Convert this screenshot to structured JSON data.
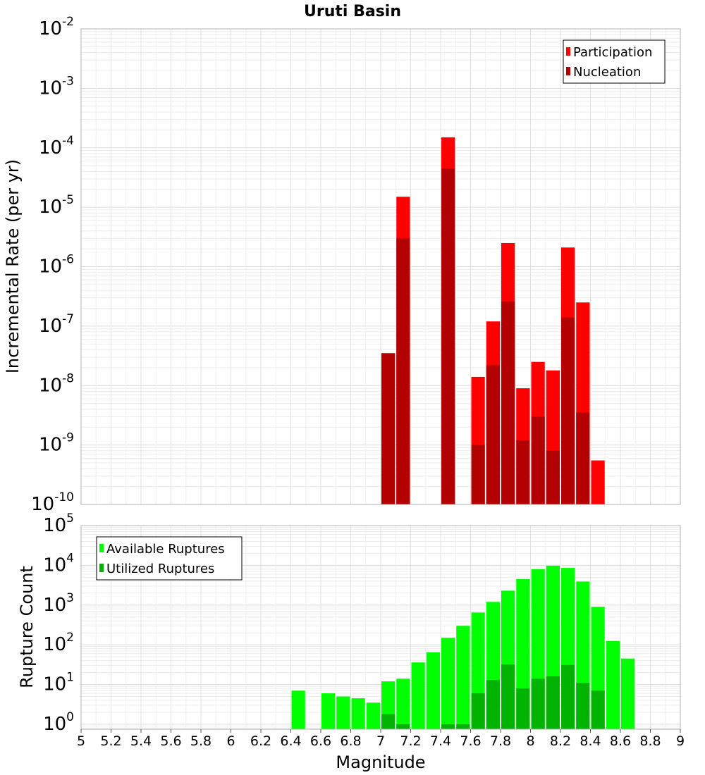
{
  "title": "Uruti Basin",
  "chart_data": [
    {
      "type": "bar",
      "ylabel": "Incremental Rate (per yr)",
      "yscale": "log",
      "ylim": [
        1e-10,
        0.01
      ],
      "y_tick_exponents": [
        -10,
        -9,
        -8,
        -7,
        -6,
        -5,
        -4,
        -3,
        -2
      ],
      "xlim": [
        5,
        9
      ],
      "grid": true,
      "legend_position": "top-right",
      "series": [
        {
          "name": "Participation",
          "color": "#ff0000",
          "x": [
            7.05,
            7.15,
            7.45,
            7.65,
            7.75,
            7.85,
            7.95,
            8.05,
            8.15,
            8.25,
            8.35,
            8.45
          ],
          "values": [
            3.5e-08,
            1.5e-05,
            0.00015,
            1.4e-08,
            1.2e-07,
            2.5e-06,
            9e-09,
            2.5e-08,
            1.8e-08,
            2.1e-06,
            2.5e-07,
            5.5e-10
          ]
        },
        {
          "name": "Nucleation",
          "color": "#b30000",
          "x": [
            7.05,
            7.15,
            7.45,
            7.65,
            7.75,
            7.85,
            7.95,
            8.05,
            8.15,
            8.25,
            8.35
          ],
          "values": [
            3.5e-08,
            3e-06,
            4.5e-05,
            1e-09,
            2.2e-08,
            2.6e-07,
            1.2e-09,
            3e-09,
            8e-10,
            1.4e-07,
            3.5e-09
          ]
        }
      ]
    },
    {
      "type": "bar",
      "xlabel": "Magnitude",
      "ylabel": "Rupture Count",
      "yscale": "log",
      "ylim": [
        0.75,
        100000
      ],
      "y_tick_exponents": [
        0,
        1,
        2,
        3,
        4,
        5
      ],
      "xlim": [
        5,
        9
      ],
      "x_ticks": [
        "5",
        "5.2",
        "5.4",
        "5.6",
        "5.8",
        "6",
        "6.2",
        "6.4",
        "6.6",
        "6.8",
        "7",
        "7.2",
        "7.4",
        "7.6",
        "7.8",
        "8",
        "8.2",
        "8.4",
        "8.6",
        "8.8",
        "9"
      ],
      "grid": true,
      "legend_position": "top-left",
      "series": [
        {
          "name": "Available Ruptures",
          "color": "#00ff00",
          "x": [
            6.45,
            6.65,
            6.75,
            6.85,
            6.95,
            7.05,
            7.15,
            7.25,
            7.35,
            7.45,
            7.55,
            7.65,
            7.75,
            7.85,
            7.95,
            8.05,
            8.15,
            8.25,
            8.35,
            8.45,
            8.55,
            8.65
          ],
          "values": [
            7,
            6,
            5,
            4.5,
            3.5,
            12,
            14,
            36,
            65,
            150,
            300,
            650,
            1200,
            2300,
            4500,
            8000,
            9800,
            8600,
            3900,
            900,
            125,
            45
          ]
        },
        {
          "name": "Utilized Ruptures",
          "color": "#00b300",
          "x": [
            7.05,
            7.15,
            7.45,
            7.55,
            7.65,
            7.75,
            7.85,
            7.95,
            8.05,
            8.15,
            8.25,
            8.35,
            8.45
          ],
          "values": [
            1.8,
            1,
            1,
            1,
            6,
            13,
            32,
            8,
            14,
            16,
            31,
            11,
            7
          ]
        }
      ]
    }
  ]
}
